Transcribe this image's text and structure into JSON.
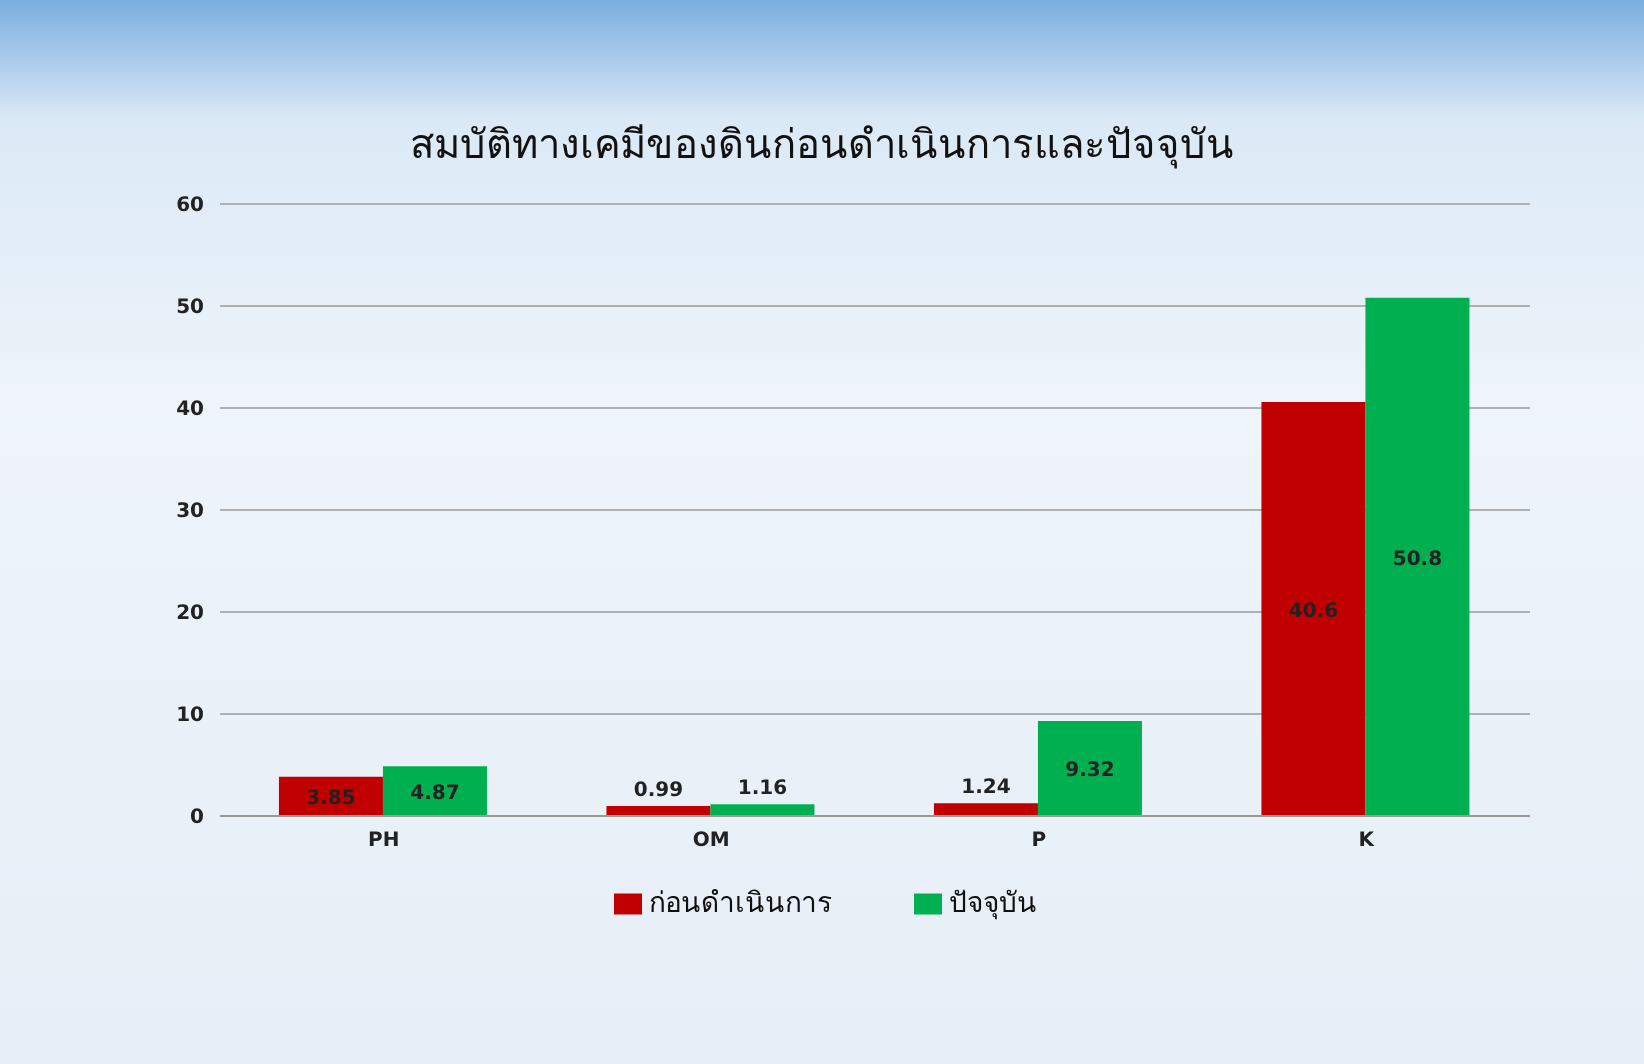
{
  "chart_data": {
    "type": "bar",
    "title": "สมบัติทางเคมีของดินก่อนดำเนินการและปัจจุบัน",
    "categories": [
      "PH",
      "OM",
      "P",
      "K"
    ],
    "series": [
      {
        "name": "ก่อนดำเนินการ",
        "color": "#c00000",
        "values": [
          3.85,
          0.99,
          1.24,
          40.6
        ]
      },
      {
        "name": "ปัจจุบัน",
        "color": "#00b050",
        "values": [
          4.87,
          1.16,
          9.32,
          50.8
        ]
      }
    ],
    "ylim": [
      0,
      60
    ],
    "yticks": [
      0,
      10,
      20,
      30,
      40,
      50,
      60
    ],
    "grid": "y",
    "legend": "bottom",
    "data_labels": true
  }
}
